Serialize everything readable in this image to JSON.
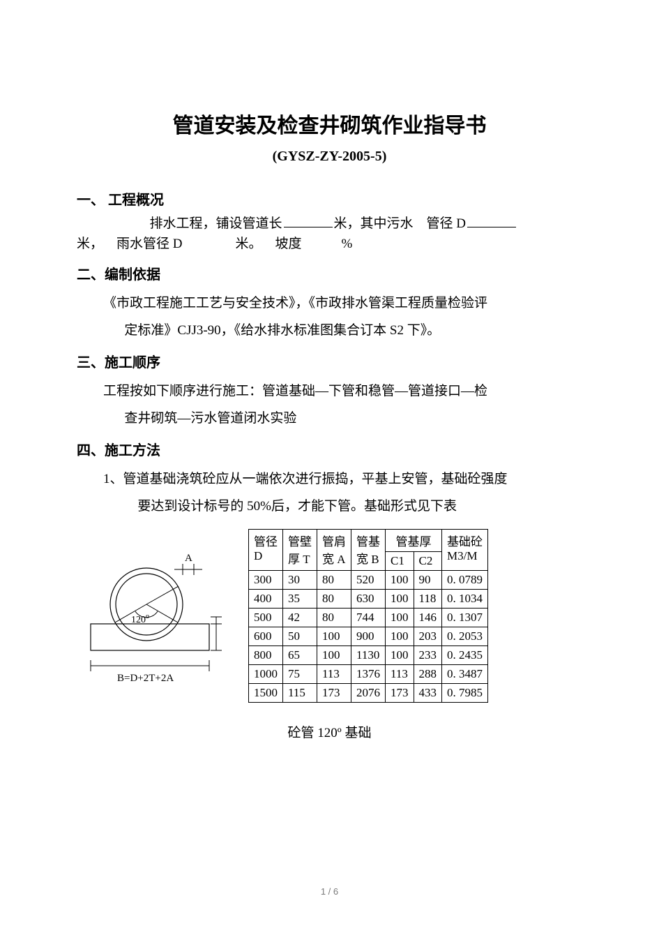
{
  "title": "管道安装及检查井砌筑作业指导书",
  "code": "(GYSZ-ZY-2005-5)",
  "sections": {
    "s1_head": "一、 工程概况",
    "s1_seg1": "排水工程，铺设管道长",
    "s1_seg2": "米，其中污水 管径 D",
    "s1_seg3": "米， 雨水管径 D    米。 坡度   %",
    "s2_head": "二、编制依据",
    "s2_l1": "《市政工程施工工艺与安全技术》，《市政排水管渠工程质量检验评",
    "s2_l2": "定标准》CJJ3-90，《给水排水标准图集合订本 S2 下》。",
    "s3_head": "三、施工顺序",
    "s3_l1": "工程按如下顺序进行施工：管道基础—下管和稳管—管道接口—检",
    "s3_l2": "查井砌筑—污水管道闭水实验",
    "s4_head": "四、施工方法",
    "s4_l1": "1、管道基础浇筑砼应从一端依次进行振捣，平基上安管，基础砼强度",
    "s4_l2": "要达到设计标号的 50%后，才能下管。基础形式见下表"
  },
  "diagram": {
    "label_A": "A",
    "angle": "120",
    "angle_deg": "o",
    "formula": "B=D+2T+2A",
    "stroke": "#000000",
    "fill": "#ffffff"
  },
  "table": {
    "h_D1": "管径",
    "h_D2": "D",
    "h_T1": "管壁",
    "h_T2": "厚 T",
    "h_A1": "管肩",
    "h_A2": "宽 A",
    "h_B1": "管基",
    "h_B2": "宽 B",
    "h_C": "管基厚",
    "h_C1": "C1",
    "h_C2": "C2",
    "h_M1": "基础砼",
    "h_M2": "M3/M",
    "rows": [
      {
        "d": "300",
        "t": "30",
        "a": "80",
        "b": "520",
        "c1": "100",
        "c2": "90",
        "m": "0. 0789"
      },
      {
        "d": "400",
        "t": "35",
        "a": "80",
        "b": "630",
        "c1": "100",
        "c2": "118",
        "m": "0. 1034"
      },
      {
        "d": "500",
        "t": "42",
        "a": "80",
        "b": "744",
        "c1": "100",
        "c2": "146",
        "m": "0. 1307"
      },
      {
        "d": "600",
        "t": "50",
        "a": "100",
        "b": "900",
        "c1": "100",
        "c2": "203",
        "m": "0. 2053"
      },
      {
        "d": "800",
        "t": "65",
        "a": "100",
        "b": "1130",
        "c1": "100",
        "c2": "233",
        "m": "0. 2435"
      },
      {
        "d": "1000",
        "t": "75",
        "a": "113",
        "b": "1376",
        "c1": "113",
        "c2": "288",
        "m": "0. 3487"
      },
      {
        "d": "1500",
        "t": "115",
        "a": "173",
        "b": "2076",
        "c1": "173",
        "c2": "433",
        "m": "0. 7985"
      }
    ]
  },
  "caption": "砼管 120º 基础",
  "page": "1 / 6"
}
